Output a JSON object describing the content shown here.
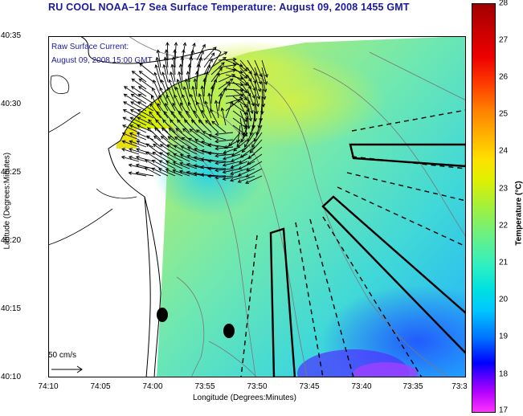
{
  "title": "RU COOL  NOAA–17  Sea Surface Temperature:  August 09, 2008 1455 GMT",
  "current_legend": {
    "line1": "Raw Surface Current:",
    "line2": "August 09, 2008 15:00 GMT"
  },
  "scale_label": "50 cm/s",
  "axes": {
    "y_label": "Latitude (Degrees:Minutes)",
    "x_label": "Longitude (Degrees:Minutes)",
    "y_ticks": [
      "40:35",
      "40:30",
      "40:25",
      "40:20",
      "40:15",
      "40:10"
    ],
    "x_ticks": [
      "74:10",
      "74:05",
      "74:00",
      "73:55",
      "73:50",
      "73:45",
      "73:40",
      "73:35",
      "73:3"
    ]
  },
  "colorbar": {
    "label": "Temperature (°C)",
    "ticks": [
      "28",
      "27",
      "26",
      "25",
      "24",
      "23",
      "22",
      "21",
      "20",
      "19",
      "18",
      "17"
    ],
    "range": [
      17,
      28
    ]
  },
  "colors": {
    "title": "#1a1a9c",
    "land": "#ffffff",
    "coast": "#000000",
    "bathymetry": "#7a7a7a"
  },
  "icons": [
    "current-vector-arrow",
    "station-marker",
    "survey-box",
    "survey-line"
  ]
}
